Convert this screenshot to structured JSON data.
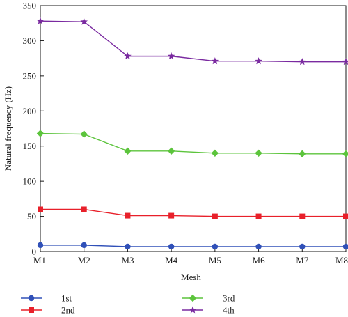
{
  "chart_data": {
    "type": "line",
    "xlabel": "Mesh",
    "ylabel": "Natural frequency (Hz)",
    "categories": [
      "M1",
      "M2",
      "M3",
      "M4",
      "M5",
      "M6",
      "M7",
      "M8"
    ],
    "ylim": [
      0,
      350
    ],
    "yticks": [
      "0",
      "50",
      "100",
      "150",
      "200",
      "250",
      "300",
      "350"
    ],
    "grid": false,
    "legend_position": "bottom",
    "series": [
      {
        "name": "1st",
        "marker": "circle-marker",
        "color": "#3050b8",
        "values": [
          9,
          9,
          7,
          7,
          7,
          7,
          7,
          7
        ]
      },
      {
        "name": "2nd",
        "marker": "square-marker",
        "color": "#e8202a",
        "values": [
          60,
          60,
          51,
          51,
          50,
          50,
          50,
          50
        ]
      },
      {
        "name": "3rd",
        "marker": "diamond-marker",
        "color": "#5cc43c",
        "values": [
          168,
          167,
          143,
          143,
          140,
          140,
          139,
          139
        ]
      },
      {
        "name": "4th",
        "marker": "star-marker",
        "color": "#7a2aa0",
        "values": [
          328,
          327,
          278,
          278,
          271,
          271,
          270,
          270
        ]
      }
    ]
  }
}
